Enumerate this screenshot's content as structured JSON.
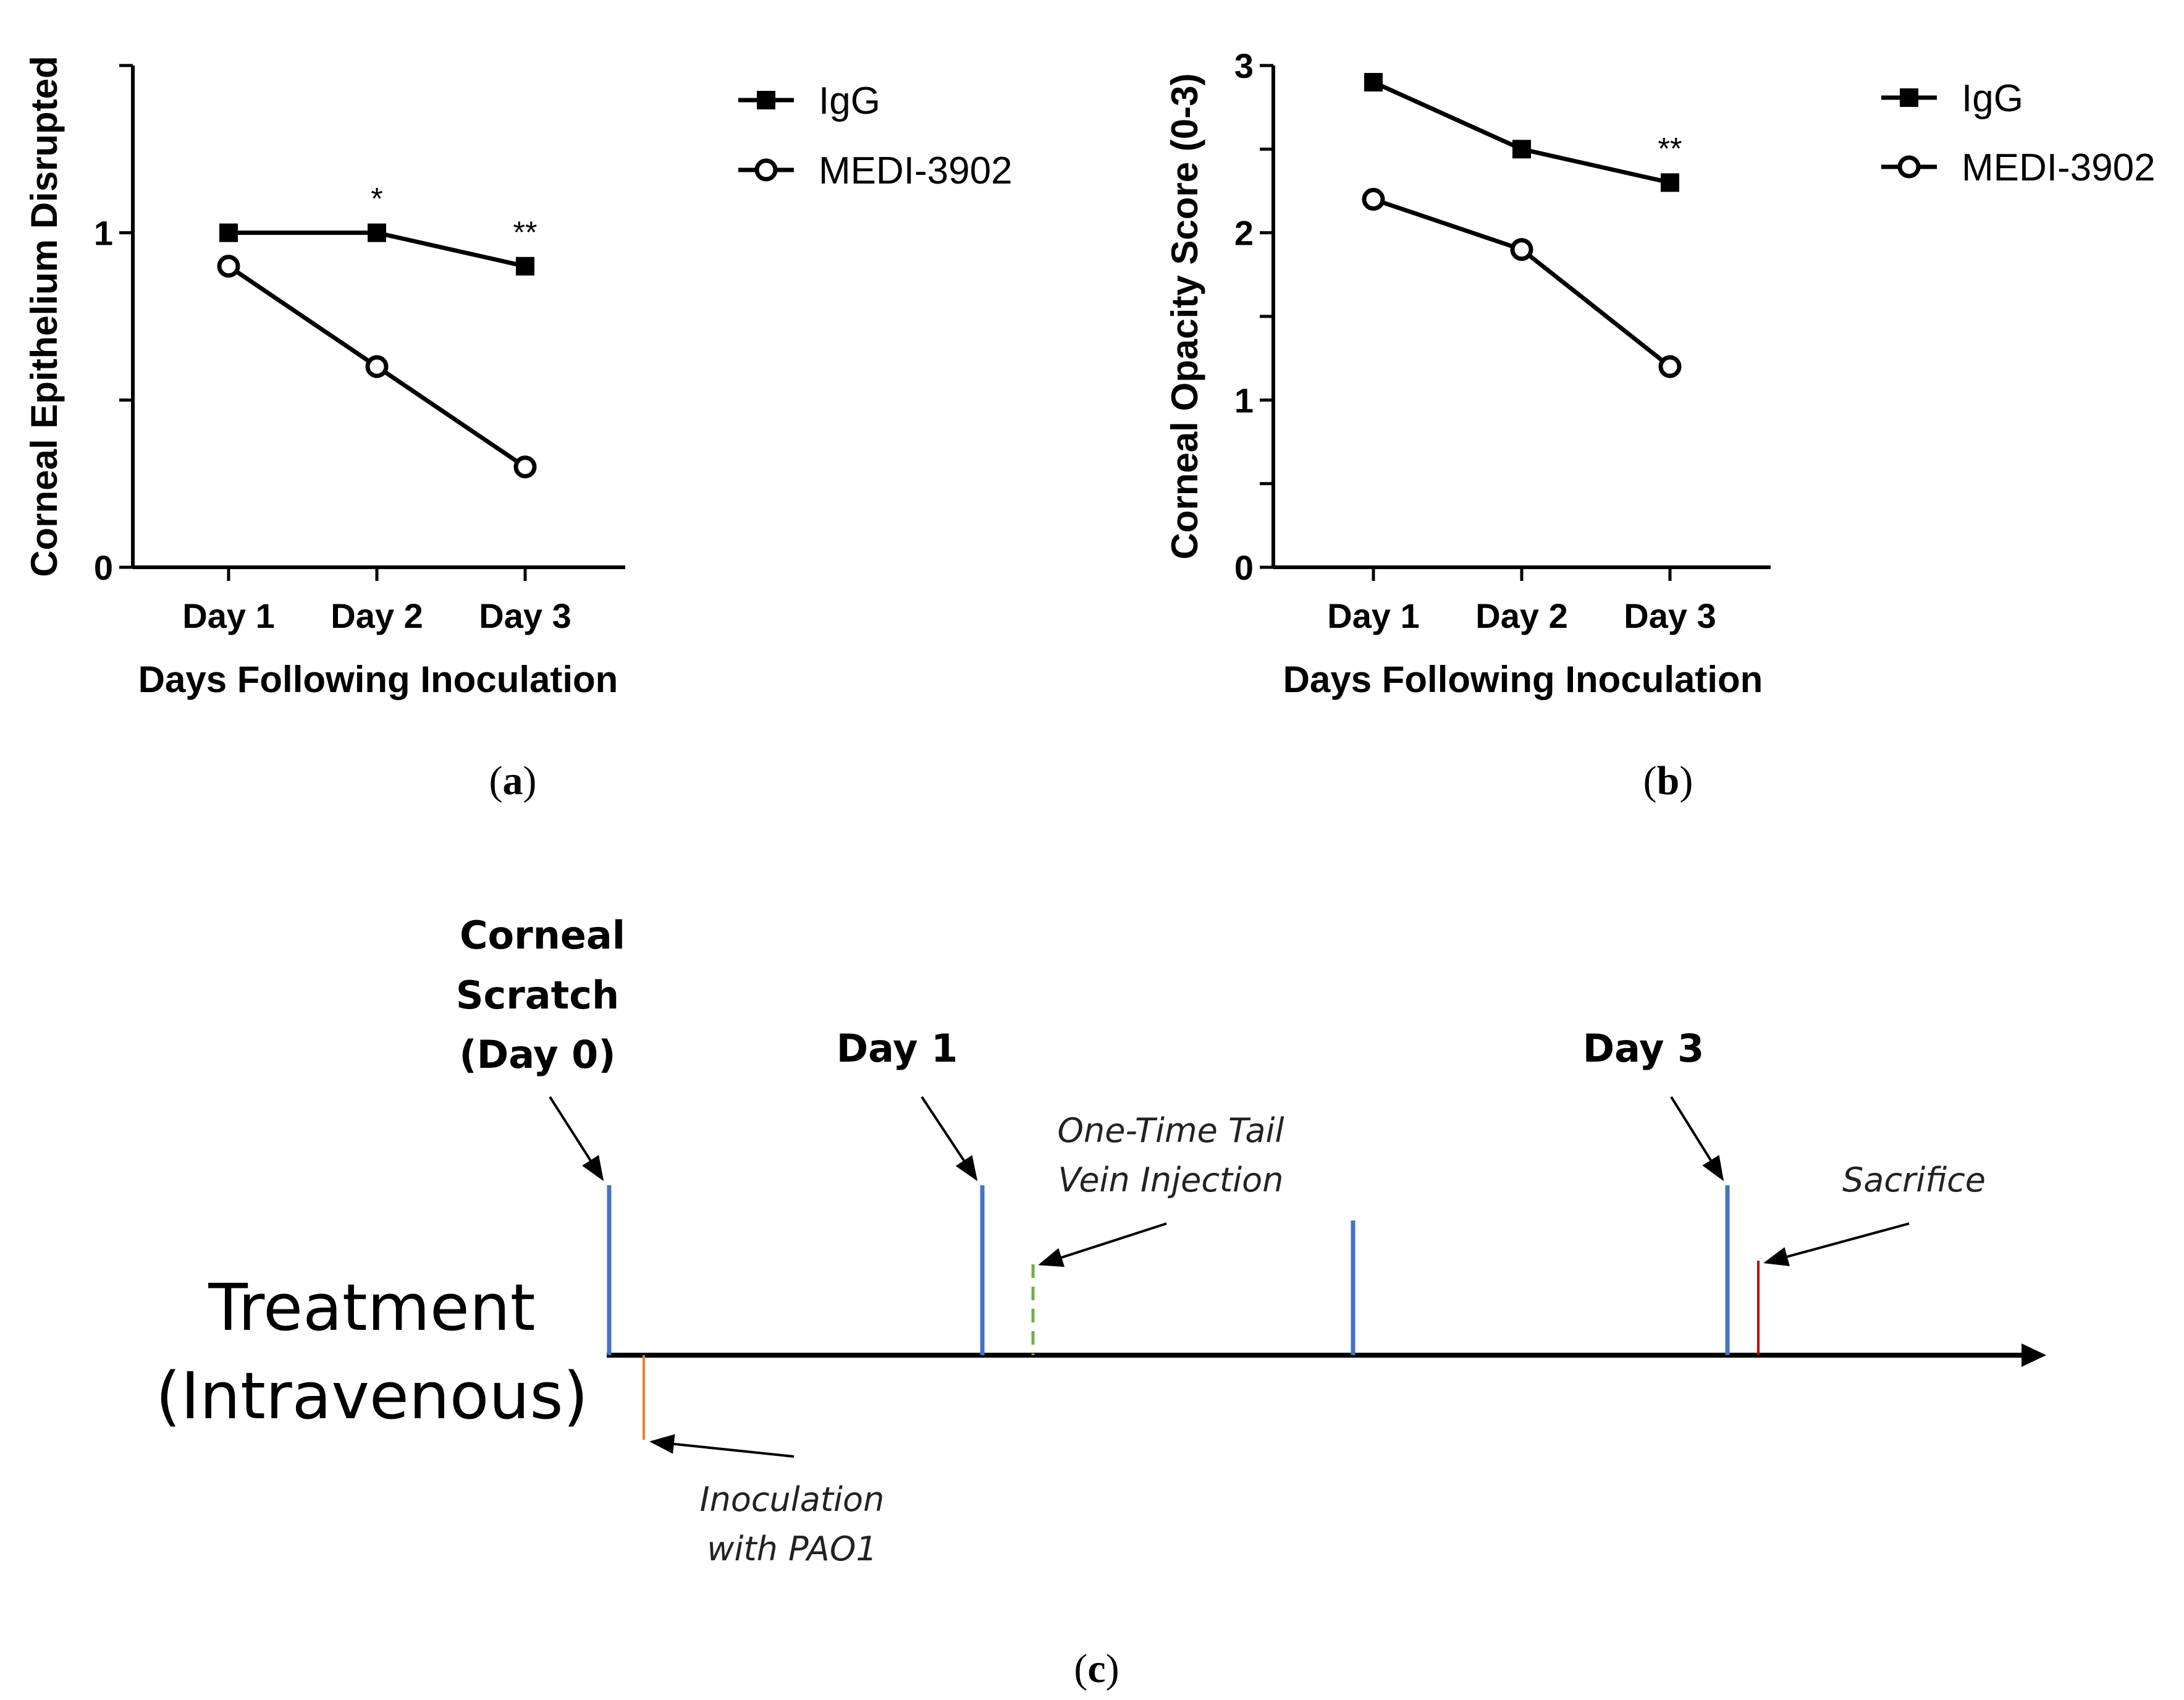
{
  "chart_data": [
    {
      "type": "line",
      "panel_label": "a",
      "title": "",
      "xlabel": "Days Following Inoculation",
      "ylabel": "Corneal Epithelium Disrupted",
      "categories": [
        "Day 1",
        "Day 2",
        "Day 3"
      ],
      "yticks": [
        "0",
        "1"
      ],
      "ylim": [
        0,
        1.5
      ],
      "series": [
        {
          "name": "IgG",
          "marker": "filled-square",
          "values": [
            1.0,
            1.0,
            0.9
          ]
        },
        {
          "name": "MEDI-3902",
          "marker": "open-circle",
          "values": [
            0.9,
            0.6,
            0.3
          ]
        }
      ],
      "annotations": [
        {
          "category": "Day 2",
          "text": "*"
        },
        {
          "category": "Day 3",
          "text": "**"
        }
      ],
      "legend_position": "right"
    },
    {
      "type": "line",
      "panel_label": "b",
      "title": "",
      "xlabel": "Days Following Inoculation",
      "ylabel": "Corneal Opacity Score  (0-3)",
      "categories": [
        "Day 1",
        "Day 2",
        "Day 3"
      ],
      "yticks": [
        "0",
        "1",
        "2",
        "3"
      ],
      "ylim": [
        0,
        3
      ],
      "series": [
        {
          "name": "IgG",
          "marker": "filled-square",
          "values": [
            2.9,
            2.5,
            2.3
          ]
        },
        {
          "name": "MEDI-3902",
          "marker": "open-circle",
          "values": [
            2.2,
            1.9,
            1.2
          ]
        }
      ],
      "annotations": [
        {
          "category": "Day 3",
          "text": "**"
        }
      ],
      "legend_position": "right"
    }
  ],
  "timeline": {
    "panel_label": "c",
    "row_label_line1": "Treatment",
    "row_label_line2": "(Intravenous)",
    "day0_line1": "Corneal",
    "day0_line2": "Scratch",
    "day0_line3": "(Day 0)",
    "day1": "Day 1",
    "day3": "Day 3",
    "injection_line1": "One-Time Tail",
    "injection_line2": "Vein Injection",
    "sacrifice": "Sacrifice",
    "inoculation_line1": "Inoculation",
    "inoculation_line2": "with PAO1",
    "colors": {
      "day_mark": "#4472C4",
      "injection": "#70AD47",
      "sacrifice": "#C00000",
      "inoculation": "#ED7D31"
    }
  }
}
